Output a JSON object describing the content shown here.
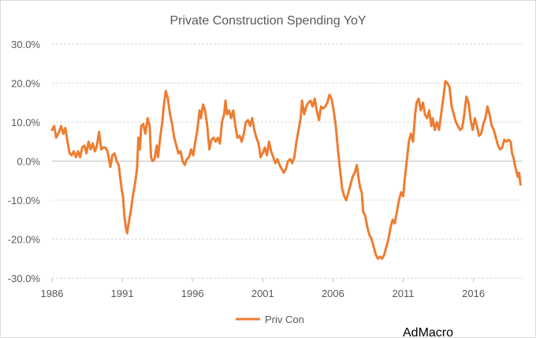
{
  "chart_data": {
    "type": "line",
    "title": "Private Construction Spending YoY",
    "xlabel": "",
    "ylabel": "",
    "xlim": [
      1986,
      2019.5
    ],
    "ylim": [
      -30,
      30
    ],
    "y_ticks": [
      -30,
      -20,
      -10,
      0,
      10,
      20,
      30
    ],
    "y_tick_labels": [
      "-30.0%",
      "-20.0%",
      "-10.0%",
      "0.0%",
      "10.0%",
      "20.0%",
      "30.0%"
    ],
    "x_ticks": [
      1986,
      1991,
      1996,
      2001,
      2006,
      2011,
      2016
    ],
    "x_tick_labels": [
      "1986",
      "1991",
      "1996",
      "2001",
      "2006",
      "2011",
      "2016"
    ],
    "grid": true,
    "legend_position": "bottom",
    "series": [
      {
        "name": "Priv Con",
        "color": "#ED7D31",
        "points": [
          [
            1986.0,
            8.0
          ],
          [
            1986.15,
            9.0
          ],
          [
            1986.3,
            6.0
          ],
          [
            1986.5,
            7.5
          ],
          [
            1986.65,
            9.0
          ],
          [
            1986.8,
            7.0
          ],
          [
            1986.95,
            8.5
          ],
          [
            1987.1,
            5.0
          ],
          [
            1987.25,
            2.0
          ],
          [
            1987.4,
            1.5
          ],
          [
            1987.55,
            2.5
          ],
          [
            1987.7,
            1.0
          ],
          [
            1987.85,
            2.5
          ],
          [
            1988.0,
            1.0
          ],
          [
            1988.15,
            3.5
          ],
          [
            1988.3,
            4.0
          ],
          [
            1988.45,
            2.0
          ],
          [
            1988.6,
            5.0
          ],
          [
            1988.75,
            3.0
          ],
          [
            1988.9,
            4.5
          ],
          [
            1989.05,
            2.5
          ],
          [
            1989.2,
            4.0
          ],
          [
            1989.35,
            7.5
          ],
          [
            1989.5,
            3.0
          ],
          [
            1989.65,
            3.5
          ],
          [
            1989.8,
            3.5
          ],
          [
            1989.95,
            2.5
          ],
          [
            1990.05,
            0.5
          ],
          [
            1990.15,
            -1.5
          ],
          [
            1990.3,
            1.5
          ],
          [
            1990.45,
            2.0
          ],
          [
            1990.6,
            0.0
          ],
          [
            1990.75,
            -1.0
          ],
          [
            1990.85,
            -4.0
          ],
          [
            1990.95,
            -7.0
          ],
          [
            1991.05,
            -9.0
          ],
          [
            1991.15,
            -14.0
          ],
          [
            1991.25,
            -17.0
          ],
          [
            1991.35,
            -18.5
          ],
          [
            1991.45,
            -16.0
          ],
          [
            1991.6,
            -13.0
          ],
          [
            1991.75,
            -9.0
          ],
          [
            1991.9,
            -6.0
          ],
          [
            1992.05,
            -2.0
          ],
          [
            1992.15,
            6.0
          ],
          [
            1992.25,
            3.0
          ],
          [
            1992.35,
            9.0
          ],
          [
            1992.5,
            9.5
          ],
          [
            1992.65,
            7.0
          ],
          [
            1992.8,
            11.0
          ],
          [
            1992.95,
            9.0
          ],
          [
            1993.05,
            1.0
          ],
          [
            1993.15,
            0.0
          ],
          [
            1993.3,
            0.5
          ],
          [
            1993.45,
            4.0
          ],
          [
            1993.55,
            1.0
          ],
          [
            1993.7,
            6.0
          ],
          [
            1993.85,
            10.0
          ],
          [
            1993.95,
            14.0
          ],
          [
            1994.1,
            18.0
          ],
          [
            1994.25,
            16.0
          ],
          [
            1994.4,
            12.0
          ],
          [
            1994.55,
            9.5
          ],
          [
            1994.7,
            6.0
          ],
          [
            1994.85,
            4.0
          ],
          [
            1995.0,
            2.0
          ],
          [
            1995.15,
            2.5
          ],
          [
            1995.3,
            0.0
          ],
          [
            1995.45,
            -1.0
          ],
          [
            1995.6,
            0.5
          ],
          [
            1995.75,
            1.0
          ],
          [
            1995.9,
            3.0
          ],
          [
            1996.05,
            1.5
          ],
          [
            1996.2,
            5.0
          ],
          [
            1996.35,
            8.0
          ],
          [
            1996.5,
            13.0
          ],
          [
            1996.6,
            11.0
          ],
          [
            1996.75,
            14.5
          ],
          [
            1996.9,
            13.0
          ],
          [
            1997.05,
            9.0
          ],
          [
            1997.2,
            3.0
          ],
          [
            1997.35,
            5.5
          ],
          [
            1997.5,
            6.0
          ],
          [
            1997.65,
            5.0
          ],
          [
            1997.8,
            6.0
          ],
          [
            1997.95,
            4.5
          ],
          [
            1998.1,
            10.0
          ],
          [
            1998.25,
            12.0
          ],
          [
            1998.35,
            15.5
          ],
          [
            1998.45,
            12.0
          ],
          [
            1998.6,
            13.0
          ],
          [
            1998.75,
            11.0
          ],
          [
            1998.9,
            13.0
          ],
          [
            1999.05,
            9.0
          ],
          [
            1999.2,
            6.0
          ],
          [
            1999.35,
            6.5
          ],
          [
            1999.5,
            5.0
          ],
          [
            1999.65,
            7.0
          ],
          [
            1999.8,
            10.0
          ],
          [
            1999.95,
            10.5
          ],
          [
            2000.1,
            9.0
          ],
          [
            2000.25,
            11.0
          ],
          [
            2000.4,
            8.0
          ],
          [
            2000.55,
            6.0
          ],
          [
            2000.7,
            4.5
          ],
          [
            2000.85,
            1.0
          ],
          [
            2001.0,
            2.0
          ],
          [
            2001.15,
            3.5
          ],
          [
            2001.3,
            1.5
          ],
          [
            2001.45,
            5.0
          ],
          [
            2001.6,
            2.5
          ],
          [
            2001.75,
            1.0
          ],
          [
            2001.9,
            -0.5
          ],
          [
            2002.05,
            0.5
          ],
          [
            2002.2,
            -1.0
          ],
          [
            2002.35,
            -2.0
          ],
          [
            2002.5,
            -3.0
          ],
          [
            2002.65,
            -2.0
          ],
          [
            2002.8,
            0.0
          ],
          [
            2002.95,
            0.5
          ],
          [
            2003.1,
            -0.5
          ],
          [
            2003.25,
            1.0
          ],
          [
            2003.4,
            5.0
          ],
          [
            2003.55,
            8.0
          ],
          [
            2003.7,
            11.0
          ],
          [
            2003.8,
            15.5
          ],
          [
            2003.95,
            12.0
          ],
          [
            2004.1,
            14.0
          ],
          [
            2004.25,
            15.0
          ],
          [
            2004.4,
            15.5
          ],
          [
            2004.55,
            14.0
          ],
          [
            2004.7,
            16.0
          ],
          [
            2004.85,
            13.0
          ],
          [
            2005.0,
            10.5
          ],
          [
            2005.15,
            14.0
          ],
          [
            2005.3,
            13.5
          ],
          [
            2005.45,
            14.0
          ],
          [
            2005.6,
            15.0
          ],
          [
            2005.75,
            17.0
          ],
          [
            2005.9,
            16.0
          ],
          [
            2006.05,
            13.0
          ],
          [
            2006.2,
            9.0
          ],
          [
            2006.35,
            3.0
          ],
          [
            2006.5,
            -2.0
          ],
          [
            2006.65,
            -7.0
          ],
          [
            2006.8,
            -9.0
          ],
          [
            2006.95,
            -10.0
          ],
          [
            2007.1,
            -8.0
          ],
          [
            2007.25,
            -6.0
          ],
          [
            2007.4,
            -4.0
          ],
          [
            2007.55,
            -3.0
          ],
          [
            2007.7,
            -1.0
          ],
          [
            2007.85,
            -5.0
          ],
          [
            2007.95,
            -7.0
          ],
          [
            2008.05,
            -8.0
          ],
          [
            2008.15,
            -13.0
          ],
          [
            2008.3,
            -14.0
          ],
          [
            2008.45,
            -17.0
          ],
          [
            2008.6,
            -19.0
          ],
          [
            2008.75,
            -20.0
          ],
          [
            2008.9,
            -22.0
          ],
          [
            2009.05,
            -24.0
          ],
          [
            2009.2,
            -25.0
          ],
          [
            2009.35,
            -24.5
          ],
          [
            2009.5,
            -25.0
          ],
          [
            2009.65,
            -24.0
          ],
          [
            2009.8,
            -22.0
          ],
          [
            2009.95,
            -20.0
          ],
          [
            2010.1,
            -17.0
          ],
          [
            2010.25,
            -15.0
          ],
          [
            2010.4,
            -16.0
          ],
          [
            2010.55,
            -13.0
          ],
          [
            2010.7,
            -10.0
          ],
          [
            2010.85,
            -8.0
          ],
          [
            2011.0,
            -9.0
          ],
          [
            2011.1,
            -5.0
          ],
          [
            2011.25,
            0.0
          ],
          [
            2011.4,
            5.0
          ],
          [
            2011.55,
            7.0
          ],
          [
            2011.7,
            5.0
          ],
          [
            2011.85,
            12.0
          ],
          [
            2011.95,
            15.0
          ],
          [
            2012.1,
            16.0
          ],
          [
            2012.25,
            13.0
          ],
          [
            2012.4,
            15.0
          ],
          [
            2012.55,
            12.0
          ],
          [
            2012.7,
            11.0
          ],
          [
            2012.85,
            13.0
          ],
          [
            2013.0,
            9.0
          ],
          [
            2013.1,
            11.0
          ],
          [
            2013.25,
            8.0
          ],
          [
            2013.4,
            10.0
          ],
          [
            2013.55,
            8.0
          ],
          [
            2013.7,
            12.0
          ],
          [
            2013.85,
            16.0
          ],
          [
            2014.0,
            20.5
          ],
          [
            2014.15,
            20.0
          ],
          [
            2014.3,
            19.0
          ],
          [
            2014.45,
            14.0
          ],
          [
            2014.6,
            12.0
          ],
          [
            2014.75,
            10.0
          ],
          [
            2014.9,
            9.0
          ],
          [
            2015.05,
            8.0
          ],
          [
            2015.2,
            8.5
          ],
          [
            2015.35,
            12.0
          ],
          [
            2015.5,
            16.5
          ],
          [
            2015.65,
            15.0
          ],
          [
            2015.8,
            10.5
          ],
          [
            2015.95,
            8.0
          ],
          [
            2016.1,
            11.0
          ],
          [
            2016.25,
            9.0
          ],
          [
            2016.4,
            6.5
          ],
          [
            2016.55,
            7.0
          ],
          [
            2016.7,
            9.5
          ],
          [
            2016.85,
            11.0
          ],
          [
            2017.0,
            14.0
          ],
          [
            2017.15,
            12.0
          ],
          [
            2017.3,
            9.0
          ],
          [
            2017.45,
            8.0
          ],
          [
            2017.6,
            6.0
          ],
          [
            2017.75,
            4.0
          ],
          [
            2017.9,
            3.0
          ],
          [
            2018.05,
            3.5
          ],
          [
            2018.2,
            5.5
          ],
          [
            2018.35,
            5.0
          ],
          [
            2018.5,
            5.5
          ],
          [
            2018.65,
            5.0
          ],
          [
            2018.75,
            2.0
          ],
          [
            2018.85,
            1.0
          ],
          [
            2018.95,
            -1.0
          ],
          [
            2019.05,
            -2.5
          ],
          [
            2019.15,
            -4.0
          ],
          [
            2019.25,
            -3.0
          ],
          [
            2019.35,
            -6.0
          ]
        ]
      }
    ]
  },
  "watermark": "AdMacro"
}
